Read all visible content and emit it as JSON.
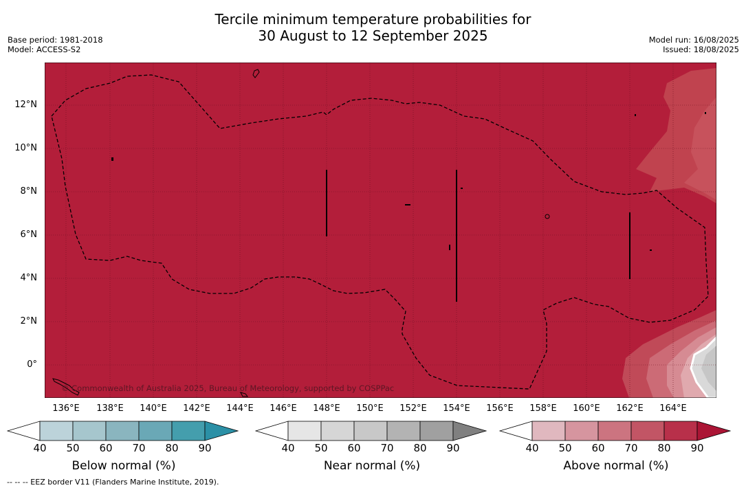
{
  "title_line1": "Tercile minimum temperature probabilities for",
  "title_line2": "30 August to 12 September 2025",
  "meta": {
    "base_period": "Base period: 1981-2018",
    "model": "Model: ACCESS-S2",
    "model_run": "Model run: 16/08/2025",
    "issued": "Issued: 18/08/2025"
  },
  "map": {
    "lat_labels": [
      "12°N",
      "10°N",
      "8°N",
      "6°N",
      "4°N",
      "2°N",
      "0°"
    ],
    "lon_labels": [
      "136°E",
      "138°E",
      "140°E",
      "142°E",
      "144°E",
      "146°E",
      "148°E",
      "150°E",
      "152°E",
      "154°E",
      "156°E",
      "158°E",
      "160°E",
      "162°E",
      "164°E"
    ],
    "copyright": "© Commonwealth of Australia 2025, Bureau of Meteorology, supported by COSPPac",
    "background_color": "#b31e3a"
  },
  "colorbars": [
    {
      "name": "below",
      "label": "Below normal (%)",
      "ticks": [
        "40",
        "50",
        "60",
        "70",
        "80",
        "90"
      ],
      "colors": [
        "#ffffff",
        "#bcd3da",
        "#a6c6cd",
        "#8ab5bf",
        "#6aa8b6",
        "#449ead",
        "#2b90a6"
      ]
    },
    {
      "name": "near",
      "label": "Near normal (%)",
      "ticks": [
        "40",
        "50",
        "60",
        "70",
        "80",
        "90"
      ],
      "colors": [
        "#ffffff",
        "#e6e6e6",
        "#d6d6d6",
        "#c8c8c8",
        "#b3b3b3",
        "#a0a0a0",
        "#808080"
      ]
    },
    {
      "name": "above",
      "label": "Above normal (%)",
      "ticks": [
        "40",
        "50",
        "60",
        "70",
        "80",
        "90"
      ],
      "colors": [
        "#ffffff",
        "#e0b8bf",
        "#d6959f",
        "#cc7480",
        "#c25565",
        "#b8304a",
        "#ab1535"
      ]
    }
  ],
  "footnote": "--  --  -- EEZ border V11 (Flanders Marine Institute, 2019)."
}
